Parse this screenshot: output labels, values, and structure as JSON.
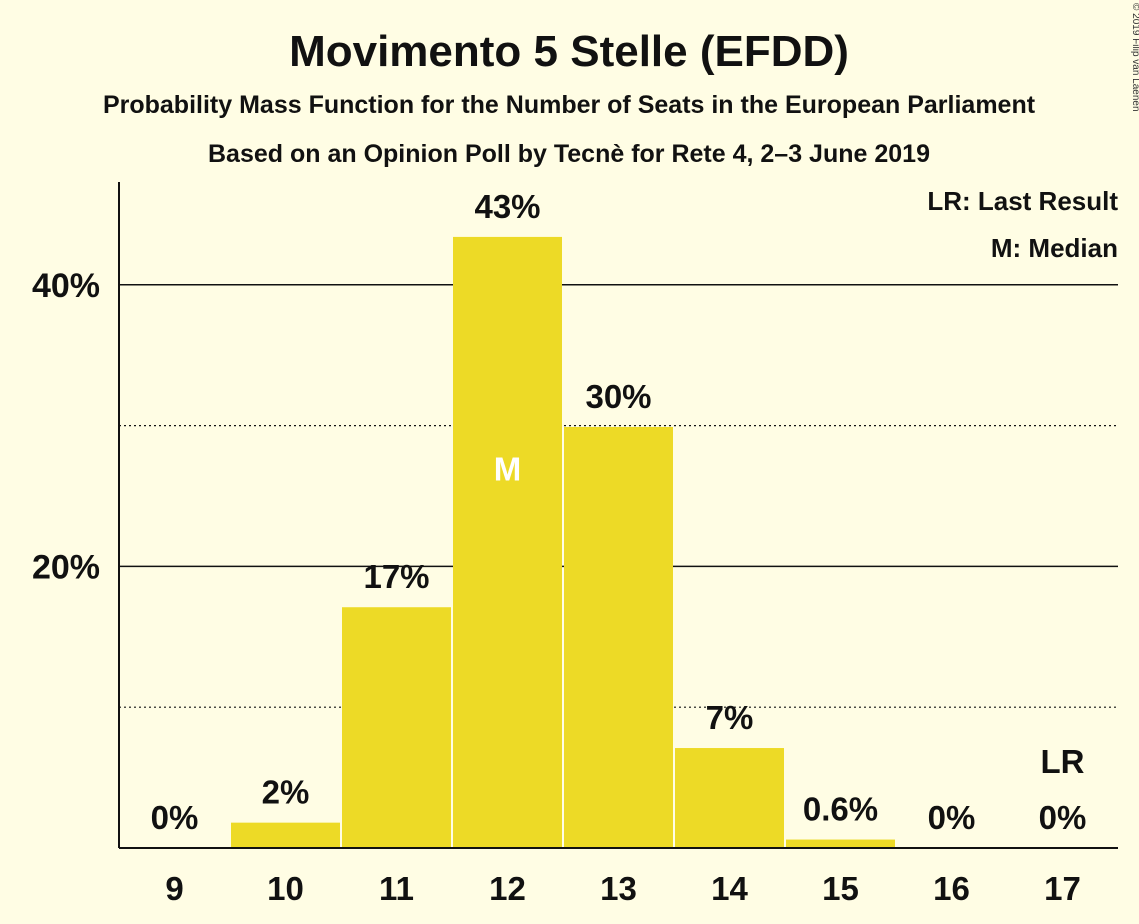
{
  "chart_data": {
    "type": "bar",
    "title": "Movimento 5 Stelle (EFDD)",
    "subtitle": "Probability Mass Function for the Number of Seats in the European Parliament",
    "subtitle2": "Based on an Opinion Poll by Tecnè for Rete 4, 2–3 June 2019",
    "copyright": "© 2019 Filip van Laenen",
    "categories": [
      "9",
      "10",
      "11",
      "12",
      "13",
      "14",
      "15",
      "16",
      "17"
    ],
    "values": [
      0,
      1.8,
      17.1,
      43.4,
      29.9,
      7.1,
      0.6,
      0,
      0
    ],
    "data_labels": [
      "0%",
      "2%",
      "17%",
      "43%",
      "30%",
      "7%",
      "0.6%",
      "0%",
      "0%"
    ],
    "ylim": [
      0,
      47.3
    ],
    "yticks": [
      {
        "value": 20,
        "label": "20%"
      },
      {
        "value": 40,
        "label": "40%"
      }
    ],
    "minor_gridlines": [
      10,
      30
    ],
    "median_category": "12",
    "median_mark": "M",
    "last_result_category": "17",
    "last_result_mark": "LR",
    "legend": [
      "LR: Last Result",
      "M: Median"
    ],
    "legend_position": "top-right",
    "grid": true,
    "colors": {
      "bar": "#EDDA26",
      "background": "#FFFDE4",
      "text": "#111111"
    }
  }
}
